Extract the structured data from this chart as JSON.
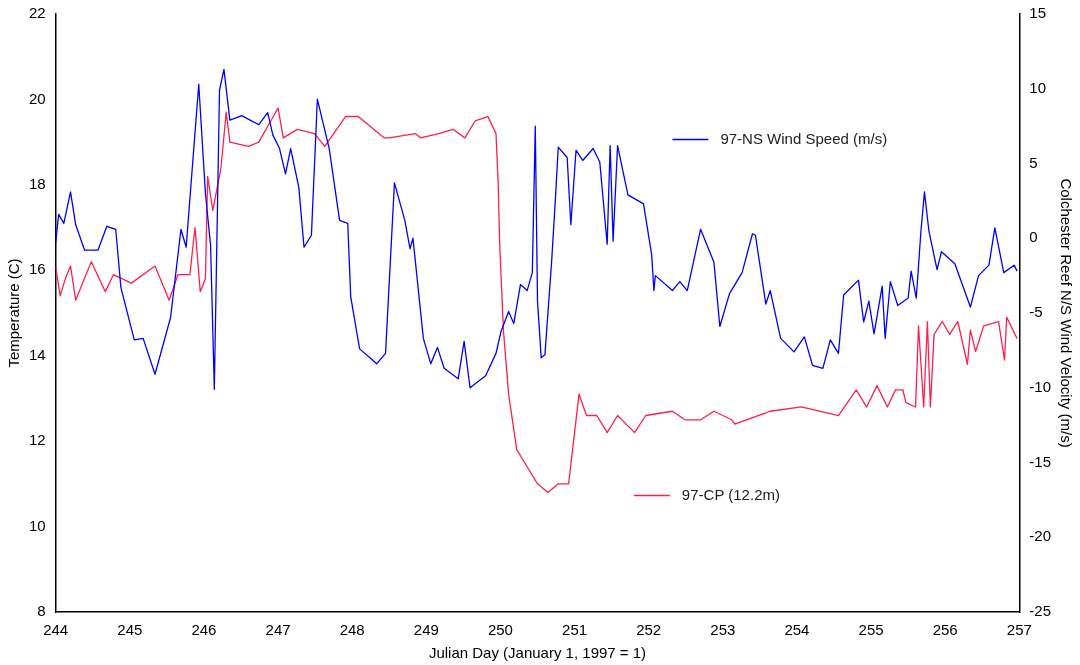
{
  "chart_data": {
    "type": "line",
    "xlabel": "Julian Day (January 1, 1997 = 1)",
    "ylabel": "Temperature (C)",
    "y2label": "Colchester Reef N/S Wind Velocity (m/s)",
    "xlim": [
      244,
      257
    ],
    "xticks": [
      244,
      245,
      246,
      247,
      248,
      249,
      250,
      251,
      252,
      253,
      254,
      255,
      256,
      257
    ],
    "ylim": [
      8,
      22
    ],
    "yticks": [
      8,
      10,
      12,
      14,
      16,
      18,
      20,
      22
    ],
    "y2lim": [
      -25,
      15
    ],
    "y2ticks": [
      -25,
      -20,
      -15,
      -10,
      -5,
      0,
      5,
      10,
      15
    ],
    "grid": false,
    "legend": "right",
    "marker": "none",
    "line_style": "solid",
    "series": [
      {
        "name": "97-NS Wind Speed (m/s)",
        "color": "#0000ff",
        "axis": "y2",
        "x": [
          244.0,
          244.04,
          244.11,
          244.2,
          244.27,
          244.39,
          244.57,
          244.69,
          244.81,
          244.88,
          245.06,
          245.18,
          245.34,
          245.55,
          245.69,
          245.76,
          245.93,
          246.02,
          246.09,
          246.14,
          246.21,
          246.27,
          246.35,
          246.51,
          246.74,
          246.86,
          246.93,
          247.02,
          247.1,
          247.17,
          247.28,
          247.35,
          247.45,
          247.53,
          247.69,
          247.83,
          247.94,
          247.98,
          248.1,
          248.24,
          248.33,
          248.45,
          248.57,
          248.71,
          248.78,
          248.82,
          248.96,
          249.06,
          249.15,
          249.24,
          249.43,
          249.51,
          249.59,
          249.8,
          249.94,
          250.01,
          250.11,
          250.18,
          250.27,
          250.36,
          250.43,
          250.47,
          250.5,
          250.55,
          250.6,
          250.69,
          250.74,
          250.78,
          250.9,
          250.95,
          251.02,
          251.11,
          251.25,
          251.34,
          251.44,
          251.48,
          251.52,
          251.58,
          251.72,
          251.93,
          252.04,
          252.07,
          252.09,
          252.32,
          252.42,
          252.52,
          252.7,
          252.88,
          252.96,
          253.09,
          253.26,
          253.4,
          253.44,
          253.58,
          253.64,
          253.78,
          253.96,
          254.1,
          254.21,
          254.35,
          254.45,
          254.56,
          254.63,
          254.83,
          254.9,
          254.97,
          255.04,
          255.15,
          255.19,
          255.26,
          255.36,
          255.5,
          255.54,
          255.61,
          255.67,
          255.72,
          255.78,
          255.89,
          255.95,
          256.13,
          256.34,
          256.45,
          256.59,
          256.67,
          256.79,
          256.93,
          256.97
        ],
        "values": [
          -0.3,
          1.6,
          1.0,
          3.1,
          0.9,
          -0.8,
          -0.8,
          0.8,
          0.6,
          -3.3,
          -6.8,
          -6.7,
          -9.1,
          -5.3,
          0.6,
          -0.6,
          10.3,
          3.0,
          -0.5,
          -10.1,
          9.9,
          11.3,
          7.9,
          8.2,
          7.6,
          8.4,
          6.9,
          6.0,
          4.3,
          6.0,
          3.4,
          -0.6,
          0.2,
          9.3,
          6.0,
          1.2,
          1.0,
          -3.9,
          -7.4,
          -8.0,
          -8.4,
          -7.7,
          3.7,
          1.2,
          -0.7,
          0.0,
          -6.7,
          -8.4,
          -7.3,
          -8.7,
          -9.4,
          -6.9,
          -10.0,
          -9.2,
          -7.7,
          -6.2,
          -4.9,
          -5.7,
          -3.1,
          -3.5,
          -2.3,
          7.5,
          -4.2,
          -8.0,
          -7.8,
          -1.6,
          2.5,
          6.1,
          5.4,
          0.9,
          5.9,
          5.2,
          6.0,
          5.1,
          -0.4,
          6.2,
          -0.2,
          6.2,
          2.9,
          2.3,
          -1.1,
          -3.5,
          -2.5,
          -3.5,
          -2.9,
          -3.5,
          0.6,
          -1.6,
          -5.9,
          -3.7,
          -2.3,
          0.3,
          0.2,
          -4.4,
          -3.5,
          -6.7,
          -7.6,
          -6.6,
          -8.5,
          -8.7,
          -6.8,
          -7.7,
          -3.8,
          -2.8,
          -5.6,
          -4.2,
          -6.4,
          -3.2,
          -6.7,
          -2.9,
          -4.5,
          -4.0,
          -2.2,
          -4.0,
          0.3,
          3.1,
          0.5,
          -2.1,
          -0.9,
          -1.7,
          -4.6,
          -2.5,
          -1.8,
          0.7,
          -2.3,
          -1.8,
          -2.2
        ]
      },
      {
        "name": "97-CP (12.2m)",
        "color": "#ff1f4f",
        "x": [
          244.0,
          244.06,
          244.13,
          244.2,
          244.27,
          244.48,
          244.67,
          244.78,
          245.02,
          245.34,
          245.53,
          245.65,
          245.81,
          245.88,
          245.95,
          246.02,
          246.05,
          246.12,
          246.23,
          246.3,
          246.35,
          246.6,
          246.74,
          247.0,
          247.07,
          247.26,
          247.49,
          247.63,
          247.91,
          248.08,
          248.43,
          248.5,
          248.85,
          248.92,
          249.17,
          249.36,
          249.52,
          249.66,
          249.83,
          249.94,
          249.97,
          249.99,
          250.04,
          250.11,
          250.22,
          250.36,
          250.5,
          250.64,
          250.78,
          250.92,
          251.06,
          251.16,
          251.3,
          251.44,
          251.58,
          251.81,
          251.96,
          252.32,
          252.49,
          252.7,
          252.88,
          253.12,
          253.16,
          253.64,
          254.06,
          254.56,
          254.8,
          254.94,
          255.08,
          255.22,
          255.33,
          255.43,
          255.47,
          255.6,
          255.64,
          255.71,
          255.76,
          255.8,
          255.85,
          255.96,
          256.06,
          256.17,
          256.3,
          256.34,
          256.41,
          256.52,
          256.72,
          256.8,
          256.83,
          256.97
        ],
        "values": [
          16.1,
          15.4,
          15.8,
          16.1,
          15.3,
          16.2,
          15.5,
          15.9,
          15.7,
          16.1,
          15.3,
          15.9,
          15.9,
          17.0,
          15.5,
          15.8,
          18.2,
          17.4,
          18.4,
          19.7,
          19.0,
          18.9,
          19.0,
          19.8,
          19.1,
          19.3,
          19.2,
          18.9,
          19.6,
          19.6,
          19.1,
          19.1,
          19.2,
          19.1,
          19.2,
          19.3,
          19.1,
          19.5,
          19.6,
          19.2,
          18.0,
          16.6,
          14.6,
          13.1,
          11.8,
          11.4,
          11.0,
          10.8,
          11.0,
          11.0,
          13.1,
          12.6,
          12.6,
          12.2,
          12.6,
          12.2,
          12.6,
          12.7,
          12.5,
          12.5,
          12.7,
          12.5,
          12.4,
          12.7,
          12.8,
          12.6,
          13.2,
          12.8,
          13.3,
          12.8,
          13.2,
          13.2,
          12.9,
          12.8,
          14.7,
          12.8,
          14.8,
          12.8,
          14.5,
          14.8,
          14.5,
          14.8,
          13.8,
          14.6,
          14.1,
          14.7,
          14.8,
          13.9,
          14.9,
          14.4
        ]
      }
    ]
  }
}
